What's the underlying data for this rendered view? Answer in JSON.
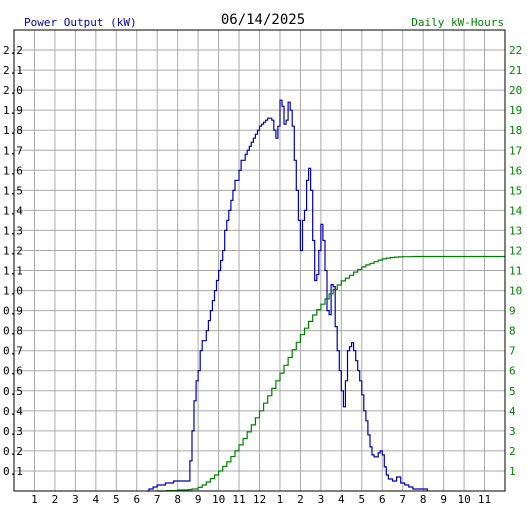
{
  "chart_data": {
    "type": "line",
    "title": "06/14/2025",
    "left_label": "Power Output (kW)",
    "right_label": "Daily kW-Hours",
    "x_ticks": [
      "1",
      "2",
      "3",
      "4",
      "5",
      "6",
      "7",
      "8",
      "9",
      "10",
      "11",
      "12",
      "1",
      "2",
      "3",
      "4",
      "5",
      "6",
      "7",
      "8",
      "9",
      "10",
      "11"
    ],
    "x_tick_hours": [
      1,
      2,
      3,
      4,
      5,
      6,
      7,
      8,
      9,
      10,
      11,
      12,
      13,
      14,
      15,
      16,
      17,
      18,
      19,
      20,
      21,
      22,
      23
    ],
    "x_range": [
      0,
      24
    ],
    "y_left_ticks": [
      "0.1",
      "0.2",
      "0.3",
      "0.4",
      "0.5",
      "0.6",
      "0.7",
      "0.8",
      "0.9",
      "1.0",
      "1.1",
      "1.2",
      "1.3",
      "1.4",
      "1.5",
      "1.6",
      "1.7",
      "1.8",
      "1.9",
      "2.0",
      "2.1",
      "2.2"
    ],
    "y_left_range": [
      0,
      2.3
    ],
    "y_right_ticks": [
      "1",
      "2",
      "3",
      "4",
      "5",
      "6",
      "7",
      "8",
      "9",
      "10",
      "11",
      "12",
      "13",
      "14",
      "15",
      "16",
      "17",
      "18",
      "19",
      "20",
      "21",
      "22"
    ],
    "y_right_range": [
      0,
      23
    ],
    "grid": true,
    "colors": {
      "power": "#0000aa",
      "energy": "#008000",
      "left_label": "#0000aa",
      "right_label": "#008000",
      "grid": "#aaaaaa",
      "axis": "#000000"
    },
    "series": [
      {
        "name": "Power Output (kW)",
        "axis": "left",
        "points": [
          [
            6.5,
            0.0
          ],
          [
            6.6,
            0.01
          ],
          [
            6.8,
            0.02
          ],
          [
            7.0,
            0.03
          ],
          [
            7.2,
            0.03
          ],
          [
            7.4,
            0.04
          ],
          [
            7.6,
            0.04
          ],
          [
            7.8,
            0.05
          ],
          [
            8.0,
            0.05
          ],
          [
            8.2,
            0.05
          ],
          [
            8.4,
            0.05
          ],
          [
            8.5,
            0.05
          ],
          [
            8.6,
            0.15
          ],
          [
            8.7,
            0.3
          ],
          [
            8.8,
            0.45
          ],
          [
            8.9,
            0.55
          ],
          [
            9.0,
            0.6
          ],
          [
            9.1,
            0.7
          ],
          [
            9.2,
            0.75
          ],
          [
            9.3,
            0.75
          ],
          [
            9.4,
            0.8
          ],
          [
            9.5,
            0.85
          ],
          [
            9.6,
            0.9
          ],
          [
            9.7,
            0.95
          ],
          [
            9.8,
            1.0
          ],
          [
            9.9,
            1.05
          ],
          [
            10.0,
            1.1
          ],
          [
            10.1,
            1.15
          ],
          [
            10.2,
            1.2
          ],
          [
            10.3,
            1.3
          ],
          [
            10.4,
            1.35
          ],
          [
            10.5,
            1.4
          ],
          [
            10.6,
            1.45
          ],
          [
            10.7,
            1.5
          ],
          [
            10.8,
            1.55
          ],
          [
            10.9,
            1.55
          ],
          [
            11.0,
            1.6
          ],
          [
            11.1,
            1.65
          ],
          [
            11.2,
            1.65
          ],
          [
            11.3,
            1.68
          ],
          [
            11.4,
            1.7
          ],
          [
            11.5,
            1.72
          ],
          [
            11.6,
            1.74
          ],
          [
            11.7,
            1.76
          ],
          [
            11.8,
            1.78
          ],
          [
            11.9,
            1.8
          ],
          [
            12.0,
            1.82
          ],
          [
            12.1,
            1.83
          ],
          [
            12.2,
            1.84
          ],
          [
            12.3,
            1.85
          ],
          [
            12.4,
            1.86
          ],
          [
            12.5,
            1.86
          ],
          [
            12.6,
            1.85
          ],
          [
            12.7,
            1.8
          ],
          [
            12.8,
            1.76
          ],
          [
            12.9,
            1.82
          ],
          [
            13.0,
            1.95
          ],
          [
            13.1,
            1.92
          ],
          [
            13.2,
            1.83
          ],
          [
            13.3,
            1.85
          ],
          [
            13.4,
            1.94
          ],
          [
            13.5,
            1.9
          ],
          [
            13.6,
            1.82
          ],
          [
            13.7,
            1.65
          ],
          [
            13.8,
            1.5
          ],
          [
            13.9,
            1.35
          ],
          [
            14.0,
            1.2
          ],
          [
            14.1,
            1.35
          ],
          [
            14.2,
            1.4
          ],
          [
            14.3,
            1.55
          ],
          [
            14.4,
            1.61
          ],
          [
            14.5,
            1.5
          ],
          [
            14.6,
            1.25
          ],
          [
            14.7,
            1.05
          ],
          [
            14.8,
            1.08
          ],
          [
            14.9,
            1.2
          ],
          [
            15.0,
            1.33
          ],
          [
            15.1,
            1.25
          ],
          [
            15.2,
            1.1
          ],
          [
            15.3,
            0.9
          ],
          [
            15.4,
            0.88
          ],
          [
            15.5,
            1.03
          ],
          [
            15.6,
            1.02
          ],
          [
            15.7,
            0.82
          ],
          [
            15.8,
            0.7
          ],
          [
            15.9,
            0.6
          ],
          [
            16.0,
            0.5
          ],
          [
            16.1,
            0.42
          ],
          [
            16.2,
            0.55
          ],
          [
            16.3,
            0.7
          ],
          [
            16.4,
            0.72
          ],
          [
            16.5,
            0.74
          ],
          [
            16.6,
            0.7
          ],
          [
            16.7,
            0.65
          ],
          [
            16.8,
            0.6
          ],
          [
            16.9,
            0.55
          ],
          [
            17.0,
            0.48
          ],
          [
            17.1,
            0.4
          ],
          [
            17.2,
            0.35
          ],
          [
            17.3,
            0.28
          ],
          [
            17.4,
            0.22
          ],
          [
            17.5,
            0.18
          ],
          [
            17.6,
            0.17
          ],
          [
            17.7,
            0.17
          ],
          [
            17.8,
            0.19
          ],
          [
            17.9,
            0.2
          ],
          [
            18.0,
            0.18
          ],
          [
            18.1,
            0.12
          ],
          [
            18.2,
            0.08
          ],
          [
            18.3,
            0.06
          ],
          [
            18.5,
            0.05
          ],
          [
            18.7,
            0.07
          ],
          [
            18.9,
            0.04
          ],
          [
            19.1,
            0.03
          ],
          [
            19.3,
            0.02
          ],
          [
            19.5,
            0.01
          ],
          [
            19.7,
            0.01
          ],
          [
            19.9,
            0.01
          ],
          [
            20.1,
            0.01
          ],
          [
            20.2,
            0.0
          ]
        ]
      },
      {
        "name": "Daily kW-Hours",
        "axis": "right",
        "points": [
          [
            7.0,
            0.0
          ],
          [
            7.5,
            0.02
          ],
          [
            8.0,
            0.05
          ],
          [
            8.5,
            0.07
          ],
          [
            8.7,
            0.1
          ],
          [
            9.0,
            0.18
          ],
          [
            9.2,
            0.3
          ],
          [
            9.4,
            0.45
          ],
          [
            9.6,
            0.62
          ],
          [
            9.8,
            0.8
          ],
          [
            10.0,
            1.0
          ],
          [
            10.2,
            1.22
          ],
          [
            10.4,
            1.45
          ],
          [
            10.6,
            1.72
          ],
          [
            10.8,
            2.0
          ],
          [
            11.0,
            2.3
          ],
          [
            11.2,
            2.62
          ],
          [
            11.4,
            2.95
          ],
          [
            11.6,
            3.3
          ],
          [
            11.8,
            3.65
          ],
          [
            12.0,
            4.0
          ],
          [
            12.2,
            4.38
          ],
          [
            12.4,
            4.75
          ],
          [
            12.6,
            5.12
          ],
          [
            12.8,
            5.5
          ],
          [
            13.0,
            5.88
          ],
          [
            13.2,
            6.27
          ],
          [
            13.4,
            6.66
          ],
          [
            13.6,
            7.05
          ],
          [
            13.8,
            7.42
          ],
          [
            14.0,
            7.8
          ],
          [
            14.2,
            8.12
          ],
          [
            14.4,
            8.46
          ],
          [
            14.6,
            8.78
          ],
          [
            14.8,
            9.05
          ],
          [
            15.0,
            9.32
          ],
          [
            15.2,
            9.58
          ],
          [
            15.4,
            9.84
          ],
          [
            15.6,
            10.06
          ],
          [
            15.8,
            10.28
          ],
          [
            16.0,
            10.48
          ],
          [
            16.2,
            10.62
          ],
          [
            16.4,
            10.76
          ],
          [
            16.6,
            10.92
          ],
          [
            16.8,
            11.05
          ],
          [
            17.0,
            11.18
          ],
          [
            17.2,
            11.28
          ],
          [
            17.4,
            11.36
          ],
          [
            17.6,
            11.44
          ],
          [
            17.8,
            11.52
          ],
          [
            18.0,
            11.58
          ],
          [
            18.2,
            11.62
          ],
          [
            18.4,
            11.65
          ],
          [
            18.6,
            11.67
          ],
          [
            18.8,
            11.68
          ],
          [
            19.0,
            11.69
          ],
          [
            19.5,
            11.7
          ],
          [
            20.0,
            11.7
          ],
          [
            22.0,
            11.7
          ],
          [
            24.0,
            11.7
          ]
        ]
      }
    ]
  }
}
